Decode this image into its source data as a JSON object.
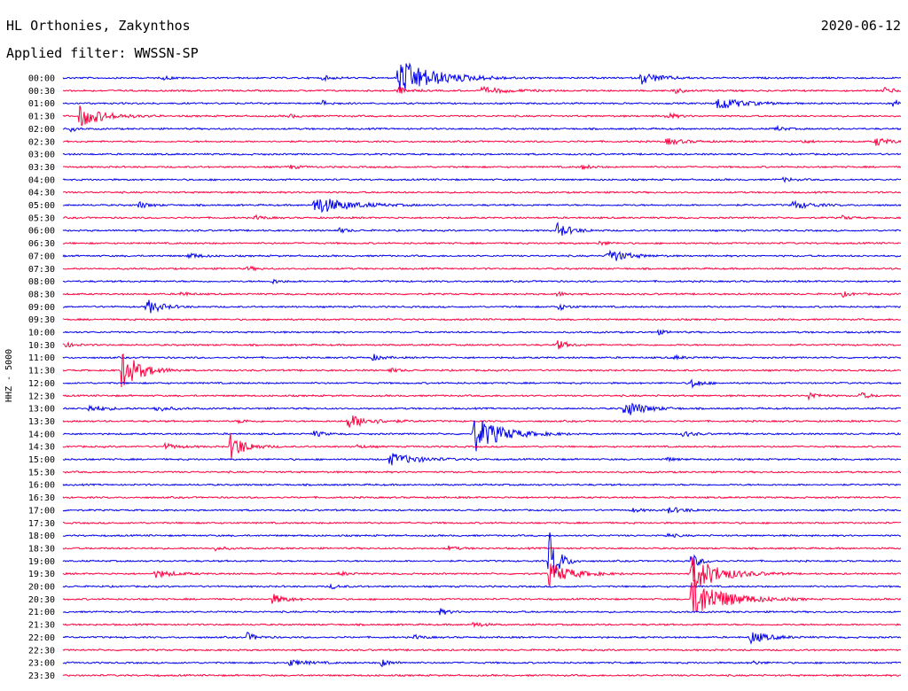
{
  "header": {
    "station": "HL Orthonies, Zakynthos",
    "date": "2020-06-12",
    "filter": "Applied filter: WWSSN-SP"
  },
  "channel": "HHZ - 5000",
  "colors": {
    "blue": "#0000ee",
    "red": "#ff0040",
    "text": "#000000"
  },
  "chart_data": {
    "type": "helicorder",
    "row_labels": [
      "00:00",
      "00:30",
      "01:00",
      "01:30",
      "02:00",
      "02:30",
      "03:00",
      "03:30",
      "04:00",
      "04:30",
      "05:00",
      "05:30",
      "06:00",
      "06:30",
      "07:00",
      "07:30",
      "08:00",
      "08:30",
      "09:00",
      "09:30",
      "10:00",
      "10:30",
      "11:00",
      "11:30",
      "12:00",
      "12:30",
      "13:00",
      "13:30",
      "14:00",
      "14:30",
      "15:00",
      "15:30",
      "16:00",
      "16:30",
      "17:00",
      "17:30",
      "18:00",
      "18:30",
      "19:00",
      "19:30",
      "20:00",
      "20:30",
      "21:00",
      "21:30",
      "22:00",
      "22:30",
      "23:00",
      "23:30"
    ],
    "row_colors": "alternating blue/red",
    "minutes_per_row": 30,
    "events": [
      {
        "row": 0,
        "t": 0.4,
        "amp": 3.0,
        "dur": 0.04
      },
      {
        "row": 0,
        "t": 0.69,
        "amp": 1.0,
        "dur": 0.02
      },
      {
        "row": 0,
        "t": 0.31,
        "amp": 0.35,
        "dur": 0.01
      },
      {
        "row": 0,
        "t": 0.12,
        "amp": 0.3,
        "dur": 0.01
      },
      {
        "row": 1,
        "t": 0.4,
        "amp": 0.6,
        "dur": 0.01
      },
      {
        "row": 1,
        "t": 0.5,
        "amp": 0.5,
        "dur": 0.03
      },
      {
        "row": 1,
        "t": 0.73,
        "amp": 0.45,
        "dur": 0.01
      },
      {
        "row": 1,
        "t": 0.98,
        "amp": 0.5,
        "dur": 0.012
      },
      {
        "row": 2,
        "t": 0.78,
        "amp": 1.2,
        "dur": 0.025
      },
      {
        "row": 2,
        "t": 0.31,
        "amp": 0.4,
        "dur": 0.01
      },
      {
        "row": 2,
        "t": 0.99,
        "amp": 0.6,
        "dur": 0.01
      },
      {
        "row": 3,
        "t": 0.02,
        "amp": 1.8,
        "dur": 0.025
      },
      {
        "row": 3,
        "t": 0.72,
        "amp": 0.6,
        "dur": 0.01
      },
      {
        "row": 3,
        "t": 0.27,
        "amp": 0.3,
        "dur": 0.01
      },
      {
        "row": 4,
        "t": 0.01,
        "amp": 0.5,
        "dur": 0.005
      },
      {
        "row": 4,
        "t": 0.85,
        "amp": 0.4,
        "dur": 0.01
      },
      {
        "row": 5,
        "t": 0.72,
        "amp": 0.5,
        "dur": 0.02
      },
      {
        "row": 5,
        "t": 0.97,
        "amp": 0.7,
        "dur": 0.015
      },
      {
        "row": 5,
        "t": 0.88,
        "amp": 0.3,
        "dur": 0.01
      },
      {
        "row": 7,
        "t": 0.27,
        "amp": 0.35,
        "dur": 0.01
      },
      {
        "row": 7,
        "t": 0.62,
        "amp": 0.35,
        "dur": 0.01
      },
      {
        "row": 8,
        "t": 0.86,
        "amp": 0.35,
        "dur": 0.01
      },
      {
        "row": 10,
        "t": 0.09,
        "amp": 0.6,
        "dur": 0.01
      },
      {
        "row": 10,
        "t": 0.3,
        "amp": 1.5,
        "dur": 0.035
      },
      {
        "row": 10,
        "t": 0.87,
        "amp": 0.7,
        "dur": 0.02
      },
      {
        "row": 11,
        "t": 0.23,
        "amp": 0.35,
        "dur": 0.01
      },
      {
        "row": 11,
        "t": 0.93,
        "amp": 0.3,
        "dur": 0.01
      },
      {
        "row": 12,
        "t": 0.33,
        "amp": 0.35,
        "dur": 0.01
      },
      {
        "row": 12,
        "t": 0.59,
        "amp": 1.2,
        "dur": 0.015
      },
      {
        "row": 13,
        "t": 0.64,
        "amp": 0.35,
        "dur": 0.01
      },
      {
        "row": 14,
        "t": 0.15,
        "amp": 0.5,
        "dur": 0.012
      },
      {
        "row": 14,
        "t": 0.65,
        "amp": 1.2,
        "dur": 0.02
      },
      {
        "row": 15,
        "t": 0.22,
        "amp": 0.35,
        "dur": 0.01
      },
      {
        "row": 16,
        "t": 0.25,
        "amp": 0.35,
        "dur": 0.01
      },
      {
        "row": 17,
        "t": 0.14,
        "amp": 0.35,
        "dur": 0.01
      },
      {
        "row": 17,
        "t": 0.59,
        "amp": 0.35,
        "dur": 0.01
      },
      {
        "row": 17,
        "t": 0.93,
        "amp": 0.4,
        "dur": 0.01
      },
      {
        "row": 18,
        "t": 0.1,
        "amp": 1.3,
        "dur": 0.015
      },
      {
        "row": 18,
        "t": 0.59,
        "amp": 0.6,
        "dur": 0.01
      },
      {
        "row": 20,
        "t": 0.71,
        "amp": 0.35,
        "dur": 0.01
      },
      {
        "row": 21,
        "t": 0.0,
        "amp": 0.5,
        "dur": 0.01
      },
      {
        "row": 21,
        "t": 0.59,
        "amp": 0.8,
        "dur": 0.01
      },
      {
        "row": 22,
        "t": 0.37,
        "amp": 0.5,
        "dur": 0.01
      },
      {
        "row": 22,
        "t": 0.73,
        "amp": 0.3,
        "dur": 0.01
      },
      {
        "row": 23,
        "t": 0.07,
        "amp": 3.2,
        "dur": 0.02
      },
      {
        "row": 23,
        "t": 0.39,
        "amp": 0.35,
        "dur": 0.01
      },
      {
        "row": 24,
        "t": 0.75,
        "amp": 0.8,
        "dur": 0.01
      },
      {
        "row": 25,
        "t": 0.89,
        "amp": 0.7,
        "dur": 0.01
      },
      {
        "row": 25,
        "t": 0.95,
        "amp": 0.6,
        "dur": 0.01
      },
      {
        "row": 26,
        "t": 0.03,
        "amp": 0.5,
        "dur": 0.02
      },
      {
        "row": 26,
        "t": 0.11,
        "amp": 0.5,
        "dur": 0.015
      },
      {
        "row": 26,
        "t": 0.67,
        "amp": 1.5,
        "dur": 0.02
      },
      {
        "row": 27,
        "t": 0.34,
        "amp": 1.1,
        "dur": 0.025
      },
      {
        "row": 27,
        "t": 0.21,
        "amp": 0.3,
        "dur": 0.01
      },
      {
        "row": 28,
        "t": 0.3,
        "amp": 0.5,
        "dur": 0.01
      },
      {
        "row": 28,
        "t": 0.49,
        "amp": 3.0,
        "dur": 0.03
      },
      {
        "row": 28,
        "t": 0.74,
        "amp": 0.5,
        "dur": 0.01
      },
      {
        "row": 29,
        "t": 0.12,
        "amp": 0.5,
        "dur": 0.015
      },
      {
        "row": 29,
        "t": 0.2,
        "amp": 2.3,
        "dur": 0.015
      },
      {
        "row": 29,
        "t": 0.35,
        "amp": 0.3,
        "dur": 0.01
      },
      {
        "row": 30,
        "t": 0.39,
        "amp": 1.0,
        "dur": 0.03
      },
      {
        "row": 30,
        "t": 0.72,
        "amp": 0.3,
        "dur": 0.01
      },
      {
        "row": 34,
        "t": 0.72,
        "amp": 0.5,
        "dur": 0.02
      },
      {
        "row": 34,
        "t": 0.68,
        "amp": 0.3,
        "dur": 0.01
      },
      {
        "row": 36,
        "t": 0.72,
        "amp": 0.35,
        "dur": 0.01
      },
      {
        "row": 37,
        "t": 0.18,
        "amp": 0.35,
        "dur": 0.01
      },
      {
        "row": 37,
        "t": 0.46,
        "amp": 0.35,
        "dur": 0.01
      },
      {
        "row": 38,
        "t": 0.58,
        "amp": 5.0,
        "dur": 0.01
      },
      {
        "row": 38,
        "t": 0.75,
        "amp": 1.2,
        "dur": 0.01
      },
      {
        "row": 39,
        "t": 0.11,
        "amp": 0.6,
        "dur": 0.02
      },
      {
        "row": 39,
        "t": 0.33,
        "amp": 0.35,
        "dur": 0.01
      },
      {
        "row": 39,
        "t": 0.58,
        "amp": 1.8,
        "dur": 0.025
      },
      {
        "row": 39,
        "t": 0.75,
        "amp": 3.0,
        "dur": 0.03
      },
      {
        "row": 40,
        "t": 0.32,
        "amp": 0.35,
        "dur": 0.01
      },
      {
        "row": 41,
        "t": 0.25,
        "amp": 0.8,
        "dur": 0.015
      },
      {
        "row": 41,
        "t": 0.75,
        "amp": 3.5,
        "dur": 0.035
      },
      {
        "row": 42,
        "t": 0.45,
        "amp": 0.5,
        "dur": 0.01
      },
      {
        "row": 43,
        "t": 0.49,
        "amp": 0.5,
        "dur": 0.01
      },
      {
        "row": 44,
        "t": 0.22,
        "amp": 0.7,
        "dur": 0.01
      },
      {
        "row": 44,
        "t": 0.42,
        "amp": 0.35,
        "dur": 0.01
      },
      {
        "row": 44,
        "t": 0.82,
        "amp": 1.0,
        "dur": 0.02
      },
      {
        "row": 46,
        "t": 0.27,
        "amp": 0.5,
        "dur": 0.02
      },
      {
        "row": 46,
        "t": 0.38,
        "amp": 0.6,
        "dur": 0.01
      },
      {
        "row": 46,
        "t": 0.82,
        "amp": 0.35,
        "dur": 0.01
      }
    ]
  }
}
